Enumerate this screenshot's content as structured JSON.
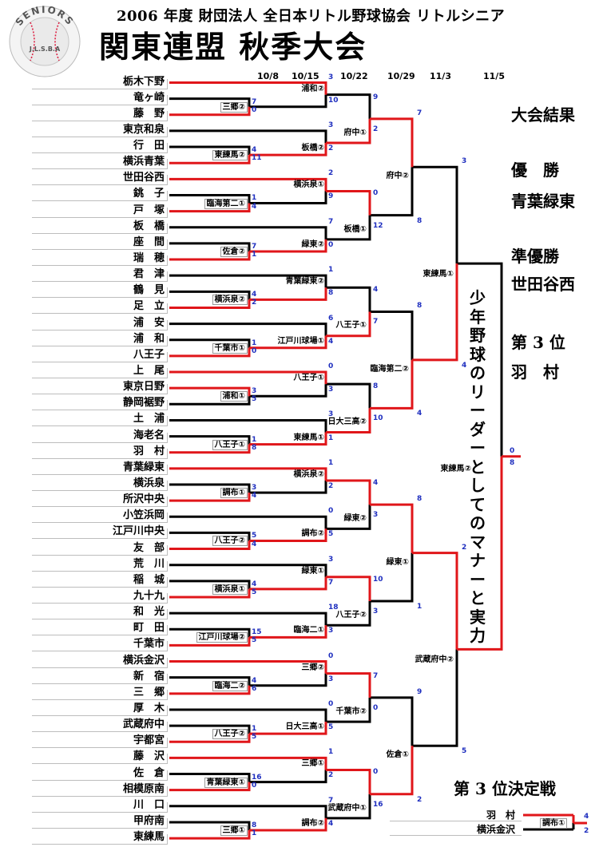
{
  "header": {
    "line1": "2006 年度 財団法人 全日本リトル野球協会 リトルシニア",
    "title": "関東連盟 秋季大会"
  },
  "logo": {
    "top_text": "SENIORS",
    "bottom_text": "J.L.S.B.A"
  },
  "dates": [
    "10/8",
    "10/15",
    "10/22",
    "10/29",
    "11/3",
    "11/5"
  ],
  "teams": [
    "栃木下野",
    "竜ヶ崎",
    "藤　野",
    "東京和泉",
    "行　田",
    "横浜青葉",
    "世田谷西",
    "銚　子",
    "戸　塚",
    "板　橋",
    "座　間",
    "瑞　穂",
    "君　津",
    "鶴　見",
    "足　立",
    "浦　安",
    "浦　和",
    "八王子",
    "上　尾",
    "東京日野",
    "静岡裾野",
    "土　浦",
    "海老名",
    "羽　村",
    "青葉緑東",
    "横浜泉",
    "所沢中央",
    "小笠浜岡",
    "江戸川中央",
    "友　部",
    "荒　川",
    "稲　城",
    "九十九",
    "和　光",
    "町　田",
    "千葉市",
    "横浜金沢",
    "新　宿",
    "三　郷",
    "厚　木",
    "武蔵府中",
    "宇都宮",
    "藤　沢",
    "佐　倉",
    "相模原南",
    "川　口",
    "甲府南",
    "東練馬"
  ],
  "venues": [
    "三郷②",
    "浦和②",
    "東練馬②",
    "板橋②",
    "府中①",
    "臨海第二①",
    "横浜泉①",
    "佐倉②",
    "緑東②",
    "板橋①",
    "横浜泉②",
    "青葉緑東②",
    "千葉市①",
    "江戸川球場①",
    "八王子①",
    "浦和①",
    "八王子①",
    "八王子①",
    "東練馬①",
    "日大三高②",
    "調布①",
    "横浜泉②",
    "八王子②",
    "調布②",
    "緑東②",
    "横浜泉①",
    "緑東①",
    "江戸川球場②",
    "臨海二①",
    "八王子②",
    "臨海二②",
    "三郷②",
    "八王子②",
    "日大三高①",
    "千葉市②",
    "青葉緑東①",
    "三郷①",
    "三郷①",
    "調布②",
    "武蔵府中①",
    "府中②",
    "臨海第二②",
    "緑東①",
    "佐倉①",
    "東練馬①",
    "武蔵府中②",
    "東練馬②"
  ],
  "scores": [
    "7",
    "0",
    "4",
    "11",
    "3",
    "10",
    "3",
    "2",
    "9",
    "2",
    "1",
    "4",
    "7",
    "1",
    "2",
    "9",
    "7",
    "0",
    "0",
    "12",
    "4",
    "2",
    "1",
    "0",
    "1",
    "8",
    "6",
    "4",
    "4",
    "7",
    "3",
    "5",
    "1",
    "8",
    "0",
    "3",
    "3",
    "1",
    "8",
    "10",
    "3",
    "4",
    "5",
    "4",
    "1",
    "2",
    "0",
    "5",
    "4",
    "3",
    "4",
    "5",
    "15",
    "5",
    "3",
    "7",
    "18",
    "3",
    "10",
    "3",
    "4",
    "6",
    "1",
    "5",
    "0",
    "3",
    "0",
    "5",
    "7",
    "0",
    "16",
    "0",
    "8",
    "1",
    "1",
    "2",
    "7",
    "4",
    "0",
    "16",
    "7",
    "8",
    "8",
    "4",
    "8",
    "1",
    "9",
    "2",
    "3",
    "4",
    "2",
    "5",
    "0",
    "8"
  ],
  "results": {
    "heading": "大会結果",
    "first_label": "優　勝",
    "first_team": "青葉緑東",
    "second_label": "準優勝",
    "second_team": "世田谷西",
    "third_label": "第 3 位",
    "third_team": "羽　村"
  },
  "slogan": "少年野球のリーダーとしてのマナーと実力",
  "third_place": {
    "heading": "第 3 位決定戦",
    "teams": [
      "羽　村",
      "横浜金沢"
    ],
    "venue": "調布①",
    "scores": [
      "4",
      "2"
    ]
  },
  "colors": {
    "winner_line": "#e0161a",
    "loser_line": "#000000",
    "score": "#1f2fbf"
  }
}
